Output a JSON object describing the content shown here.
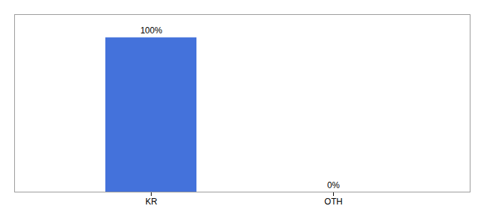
{
  "chart_data": {
    "type": "bar",
    "categories": [
      "KR",
      "OTH"
    ],
    "values": [
      100,
      0
    ],
    "value_labels": [
      "100%",
      "0%"
    ],
    "color": "#4472db",
    "ylim": [
      0,
      115
    ],
    "data_labels": true,
    "tick_labels": "x",
    "grid": false
  }
}
